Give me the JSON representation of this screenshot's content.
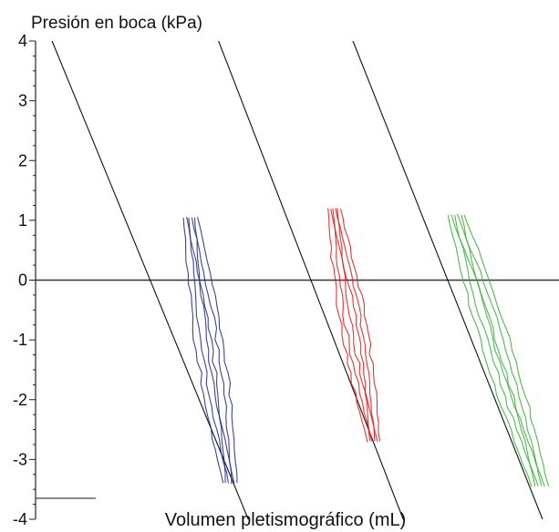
{
  "chart_data": {
    "type": "line",
    "title": "",
    "ylabel": "Presión en boca (kPa)",
    "xlabel": "Volumen pletismográfico (mL)",
    "ylim": [
      -4,
      4
    ],
    "y_ticks": [
      "4",
      "3",
      "2",
      "1",
      "0",
      "-1",
      "-2",
      "-3",
      "-4"
    ],
    "reference_level": -3.65,
    "grid": false,
    "legend": "none",
    "series": [
      {
        "color": "#2a2f8c",
        "fit_line": [
          [
            -0.4,
            4
          ],
          [
            1.98,
            -4
          ]
        ],
        "loop_range": [
          [
            1.28,
            1.05
          ],
          [
            1.76,
            -3.4
          ]
        ],
        "loop_spread": 0.035
      },
      {
        "color": "#e81c1c",
        "fit_line": [
          [
            1.62,
            4
          ],
          [
            3.86,
            -4
          ]
        ],
        "loop_range": [
          [
            3.02,
            1.2
          ],
          [
            3.5,
            -2.7
          ]
        ],
        "loop_spread": 0.03
      },
      {
        "color": "#3cb23c",
        "fit_line": [
          [
            3.25,
            4
          ],
          [
            5.55,
            -4
          ]
        ],
        "loop_range": [
          [
            4.5,
            1.1
          ],
          [
            5.52,
            -3.45
          ]
        ],
        "loop_spread": 0.04
      }
    ]
  }
}
